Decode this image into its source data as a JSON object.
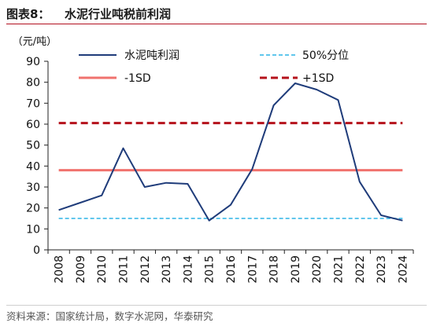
{
  "figure": {
    "number": "图表8：",
    "title": "水泥行业吨税前利润",
    "source_label": "资料来源：",
    "source_text": "国家统计局，数字水泥网，华泰研究"
  },
  "chart_data": {
    "type": "line",
    "unit_label": "（元/吨）",
    "categories": [
      "2008",
      "2009",
      "2010",
      "2011",
      "2012",
      "2013",
      "2014",
      "2015",
      "2016",
      "2017",
      "2018",
      "2019",
      "2020",
      "2021",
      "2022",
      "2023",
      "2024"
    ],
    "ylim": [
      0,
      90
    ],
    "yticks": [
      0,
      10,
      20,
      30,
      40,
      50,
      60,
      70,
      80,
      90
    ],
    "grid": false,
    "legend_position": "top",
    "series": [
      {
        "name": "水泥吨利润",
        "style": "solid",
        "color": "#1f3c7a",
        "values": [
          19.0,
          22.5,
          26.0,
          48.5,
          30.0,
          32.0,
          31.5,
          14.0,
          21.5,
          38.5,
          69.0,
          79.5,
          76.5,
          71.5,
          32.5,
          16.5,
          14.0
        ]
      },
      {
        "name": "50%分位",
        "style": "dashed-thin",
        "color": "#2cb3e6",
        "constant": 15
      },
      {
        "name": "-1SD",
        "style": "solid-thick",
        "color": "#f0726e",
        "constant": 38
      },
      {
        "name": "+1SD",
        "style": "dashed-thick",
        "color": "#b5121b",
        "constant": 60.5
      }
    ]
  }
}
